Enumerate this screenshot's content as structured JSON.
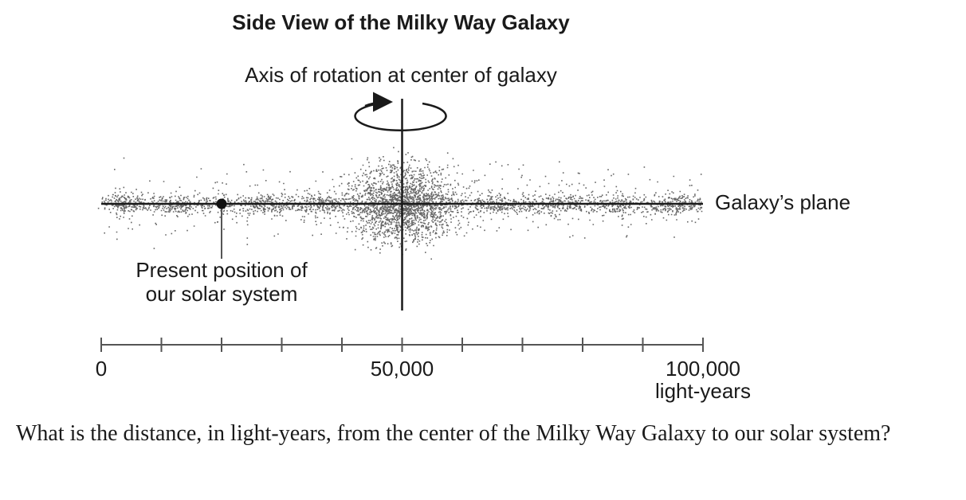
{
  "title": "Side View of the Milky Way Galaxy",
  "axis_label": "Axis of rotation at center of galaxy",
  "plane_label": "Galaxy’s plane",
  "center_position": 50000,
  "solar_system": {
    "label_lines": [
      "Present position of",
      "our solar system"
    ],
    "position": 20000
  },
  "scale": {
    "range": [
      0,
      100000
    ],
    "ticks": [
      0,
      10000,
      20000,
      30000,
      40000,
      50000,
      60000,
      70000,
      80000,
      90000,
      100000
    ],
    "tick_labels": [
      0,
      {
        "value": 50000,
        "label": "50,000"
      },
      {
        "value": 100000,
        "label": "100,000"
      }
    ],
    "unit": "light-years"
  },
  "question": "What is the distance, in light-years, from the center of the Milky Way Galaxy to our solar system?"
}
